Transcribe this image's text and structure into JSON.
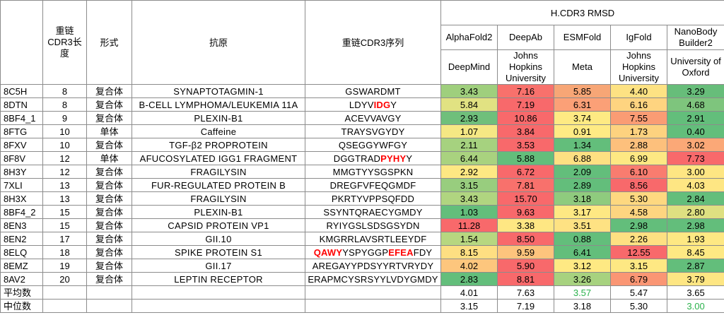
{
  "headers": {
    "group_title": "H.CDR3 RMSD",
    "col_length": "重链CDR3长度",
    "col_form": "形式",
    "col_antigen": "抗原",
    "col_sequence": "重链CDR3序列",
    "methods": [
      {
        "name": "AlphaFold2",
        "org": "DeepMind"
      },
      {
        "name": "DeepAb",
        "org": "Johns Hopkins University"
      },
      {
        "name": "ESMFold",
        "org": "Meta"
      },
      {
        "name": "IgFold",
        "org": "Johns Hopkins University"
      },
      {
        "name": "NanoBody Builder2",
        "org": "University of Oxford"
      }
    ]
  },
  "rows": [
    {
      "id": "8C5H",
      "len": "8",
      "form": "复合体",
      "antigen": "SYNAPTOTAGMIN-1",
      "seq": [
        {
          "t": "GSWARDMT",
          "hl": false
        }
      ],
      "vals": [
        {
          "v": "3.43",
          "c": "#9fcf7d"
        },
        {
          "v": "7.16",
          "c": "#f8716c"
        },
        {
          "v": "5.85",
          "c": "#f7a676"
        },
        {
          "v": "4.40",
          "c": "#fde283"
        },
        {
          "v": "3.29",
          "c": "#67bd7a"
        }
      ]
    },
    {
      "id": "8DTN",
      "len": "8",
      "form": "复合体",
      "antigen": "B-CELL LYMPHOMA/LEUKEMIA 11A",
      "seq": [
        {
          "t": "LDYV",
          "hl": false
        },
        {
          "t": "IDG",
          "hl": true
        },
        {
          "t": "Y",
          "hl": false
        }
      ],
      "vals": [
        {
          "v": "5.84",
          "c": "#e1e282"
        },
        {
          "v": "7.19",
          "c": "#f8696b"
        },
        {
          "v": "6.31",
          "c": "#fba077"
        },
        {
          "v": "6.16",
          "c": "#fed480"
        },
        {
          "v": "4.68",
          "c": "#7ec57d"
        }
      ]
    },
    {
      "id": "8BF4_1",
      "len": "9",
      "form": "复合体",
      "antigen": "PLEXIN-B1",
      "seq": [
        {
          "t": "ACEVVAVGY",
          "hl": false
        }
      ],
      "vals": [
        {
          "v": "2.93",
          "c": "#6fbf7b"
        },
        {
          "v": "10.86",
          "c": "#f8696b"
        },
        {
          "v": "3.74",
          "c": "#feea83"
        },
        {
          "v": "7.55",
          "c": "#fa9c74"
        },
        {
          "v": "2.91",
          "c": "#63be7b"
        }
      ]
    },
    {
      "id": "8FTG",
      "len": "10",
      "form": "单体",
      "antigen": "Caffeine",
      "seq": [
        {
          "t": "TRAYSVGYDY",
          "hl": false
        }
      ],
      "vals": [
        {
          "v": "1.07",
          "c": "#f5e884"
        },
        {
          "v": "3.84",
          "c": "#f8696b"
        },
        {
          "v": "0.91",
          "c": "#ffeb84"
        },
        {
          "v": "1.73",
          "c": "#fdd27f"
        },
        {
          "v": "0.40",
          "c": "#63be7b"
        }
      ]
    },
    {
      "id": "8FXV",
      "len": "10",
      "form": "复合体",
      "antigen": "TGF-β2 PROPROTEIN",
      "seq": [
        {
          "t": "QSEGGYWFGY",
          "hl": false
        }
      ],
      "vals": [
        {
          "v": "2.11",
          "c": "#a6d27f"
        },
        {
          "v": "3.53",
          "c": "#f8696b"
        },
        {
          "v": "1.34",
          "c": "#63be7b"
        },
        {
          "v": "2.88",
          "c": "#fdc07c"
        },
        {
          "v": "3.02",
          "c": "#fba877"
        }
      ]
    },
    {
      "id": "8F8V",
      "len": "12",
      "form": "单体",
      "antigen": "AFUCOSYLATED IGG1 FRAGMENT",
      "seq": [
        {
          "t": "DGGTRAD",
          "hl": false
        },
        {
          "t": "PYHY",
          "hl": true
        },
        {
          "t": "Y",
          "hl": false
        }
      ],
      "vals": [
        {
          "v": "6.44",
          "c": "#a9d27f"
        },
        {
          "v": "5.88",
          "c": "#63be7b"
        },
        {
          "v": "6.88",
          "c": "#fee082"
        },
        {
          "v": "6.99",
          "c": "#fde883"
        },
        {
          "v": "7.73",
          "c": "#f8696b"
        }
      ]
    },
    {
      "id": "8H3Y",
      "len": "12",
      "form": "复合体",
      "antigen": "FRAGILYSIN",
      "seq": [
        {
          "t": "MMGTYYSGSPKN",
          "hl": false
        }
      ],
      "vals": [
        {
          "v": "2.92",
          "c": "#fee883"
        },
        {
          "v": "6.72",
          "c": "#f8696b"
        },
        {
          "v": "2.09",
          "c": "#63be7b"
        },
        {
          "v": "6.10",
          "c": "#f97c6f"
        },
        {
          "v": "3.00",
          "c": "#fee683"
        }
      ]
    },
    {
      "id": "7XLI",
      "len": "13",
      "form": "复合体",
      "antigen": "FUR-REGULATED PROTEIN B",
      "seq": [
        {
          "t": "DREGFVFEQGMDF",
          "hl": false
        }
      ],
      "vals": [
        {
          "v": "3.15",
          "c": "#98cd7e"
        },
        {
          "v": "7.81",
          "c": "#f8716c"
        },
        {
          "v": "2.89",
          "c": "#63be7b"
        },
        {
          "v": "8.56",
          "c": "#f8696b"
        },
        {
          "v": "4.03",
          "c": "#fee683"
        }
      ]
    },
    {
      "id": "8H3X",
      "len": "13",
      "form": "复合体",
      "antigen": "FRAGILYSIN",
      "seq": [
        {
          "t": "PKRTYVPPSQFDD",
          "hl": false
        }
      ],
      "vals": [
        {
          "v": "3.43",
          "c": "#b0d580"
        },
        {
          "v": "15.70",
          "c": "#f8696b"
        },
        {
          "v": "3.18",
          "c": "#8fcb7e"
        },
        {
          "v": "5.30",
          "c": "#fed880"
        },
        {
          "v": "2.84",
          "c": "#63be7b"
        }
      ]
    },
    {
      "id": "8BF4_2",
      "len": "15",
      "form": "复合体",
      "antigen": "PLEXIN-B1",
      "seq": [
        {
          "t": "SSYNTQRAECYGMDY",
          "hl": false
        }
      ],
      "vals": [
        {
          "v": "1.03",
          "c": "#63be7b"
        },
        {
          "v": "9.63",
          "c": "#f8696b"
        },
        {
          "v": "3.17",
          "c": "#fee883"
        },
        {
          "v": "4.58",
          "c": "#fed580"
        },
        {
          "v": "2.80",
          "c": "#dee081"
        }
      ]
    },
    {
      "id": "8EN3",
      "len": "15",
      "form": "复合体",
      "antigen": "CAPSID PROTEIN VP1",
      "seq": [
        {
          "t": "RYIYGSLSDSGSYDN",
          "hl": false
        }
      ],
      "vals": [
        {
          "v": "11.28",
          "c": "#f8696b"
        },
        {
          "v": "3.38",
          "c": "#fee783"
        },
        {
          "v": "3.51",
          "c": "#fee283"
        },
        {
          "v": "2.98",
          "c": "#63be7b"
        },
        {
          "v": "2.98",
          "c": "#63be7b"
        }
      ]
    },
    {
      "id": "8EN2",
      "len": "17",
      "form": "复合体",
      "antigen": "GII.10",
      "seq": [
        {
          "t": "KMGRRLAVSRTLEEYDF",
          "hl": false
        }
      ],
      "vals": [
        {
          "v": "1.54",
          "c": "#b7d780"
        },
        {
          "v": "8.50",
          "c": "#f8696b"
        },
        {
          "v": "0.88",
          "c": "#63be7b"
        },
        {
          "v": "2.26",
          "c": "#fee082"
        },
        {
          "v": "1.93",
          "c": "#fee883"
        }
      ]
    },
    {
      "id": "8ELQ",
      "len": "18",
      "form": "复合体",
      "antigen": "SPIKE PROTEIN S1",
      "seq": [
        {
          "t": "QAWY",
          "hl": true
        },
        {
          "t": "YSPYGGP",
          "hl": false
        },
        {
          "t": "EFEA",
          "hl": true
        },
        {
          "t": "FDY",
          "hl": false
        }
      ],
      "vals": [
        {
          "v": "8.15",
          "c": "#fedf82"
        },
        {
          "v": "9.59",
          "c": "#fdc47d"
        },
        {
          "v": "6.41",
          "c": "#63be7b"
        },
        {
          "v": "12.55",
          "c": "#f8696b"
        },
        {
          "v": "8.45",
          "c": "#fee983"
        }
      ]
    },
    {
      "id": "8EMZ",
      "len": "19",
      "form": "复合体",
      "antigen": "GII.17",
      "seq": [
        {
          "t": "AREGAYYPDSYYRTVRYDY",
          "hl": false
        }
      ],
      "vals": [
        {
          "v": "4.02",
          "c": "#fdc67d"
        },
        {
          "v": "5.90",
          "c": "#f8696b"
        },
        {
          "v": "3.12",
          "c": "#fee983"
        },
        {
          "v": "3.15",
          "c": "#fee883"
        },
        {
          "v": "2.87",
          "c": "#63be7b"
        }
      ]
    },
    {
      "id": "8AV2",
      "len": "20",
      "form": "复合体",
      "antigen": "LEPTIN RECEPTOR",
      "seq": [
        {
          "t": "ERAPMCYSRSYYLVDYGMDY",
          "hl": false
        }
      ],
      "vals": [
        {
          "v": "2.83",
          "c": "#63be7b"
        },
        {
          "v": "8.81",
          "c": "#f8696b"
        },
        {
          "v": "3.26",
          "c": "#a7d27f"
        },
        {
          "v": "6.79",
          "c": "#fa9674"
        },
        {
          "v": "3.79",
          "c": "#fee683"
        }
      ]
    }
  ],
  "summary": [
    {
      "label": "平均数",
      "vals": [
        {
          "v": "4.01",
          "green": false
        },
        {
          "v": "7.63",
          "green": false
        },
        {
          "v": "3.57",
          "green": true
        },
        {
          "v": "5.47",
          "green": false
        },
        {
          "v": "3.65",
          "green": false
        }
      ]
    },
    {
      "label": "中位数",
      "vals": [
        {
          "v": "3.15",
          "green": false
        },
        {
          "v": "7.19",
          "green": false
        },
        {
          "v": "3.18",
          "green": false
        },
        {
          "v": "5.30",
          "green": false
        },
        {
          "v": "3.00",
          "green": true
        }
      ]
    }
  ],
  "colors": {
    "highlight_text": "#ff0000",
    "best_value_text": "#2bb24c",
    "grid": "#8c8c8c"
  }
}
